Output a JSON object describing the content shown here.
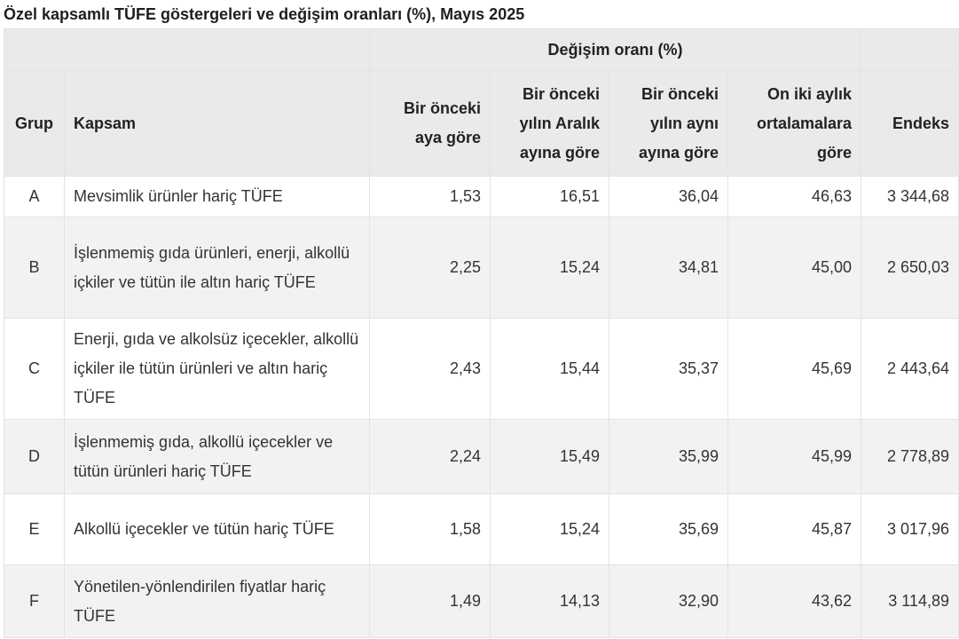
{
  "title": "Özel kapsamlı TÜFE göstergeleri ve değişim oranları (%), Mayıs 2025",
  "header": {
    "change_group": "Değişim oranı (%)",
    "group": "Grup",
    "scope": "Kapsam",
    "monthly": "Bir önceki aya göre",
    "dec": "Bir önceki yılın Aralık ayına göre",
    "yoy": "Bir önceki yılın aynı ayına göre",
    "avg12": "On iki aylık ortalamalara göre",
    "index": "Endeks"
  },
  "rows": [
    {
      "group": "A",
      "scope": "Mevsimlik ürünler hariç TÜFE",
      "monthly": "1,53",
      "dec": "16,51",
      "yoy": "36,04",
      "avg12": "46,63",
      "index": "3 344,68"
    },
    {
      "group": "B",
      "scope": "İşlenmemiş gıda ürünleri, enerji, alkollü içkiler ve tütün ile altın hariç TÜFE",
      "monthly": "2,25",
      "dec": "15,24",
      "yoy": "34,81",
      "avg12": "45,00",
      "index": "2 650,03"
    },
    {
      "group": "C",
      "scope": "Enerji, gıda ve alkolsüz içecekler, alkollü içkiler ile tütün ürünleri ve altın hariç TÜFE",
      "monthly": "2,43",
      "dec": "15,44",
      "yoy": "35,37",
      "avg12": "45,69",
      "index": "2 443,64"
    },
    {
      "group": "D",
      "scope": "İşlenmemiş gıda, alkollü içecekler ve tütün ürünleri hariç TÜFE",
      "monthly": "2,24",
      "dec": "15,49",
      "yoy": "35,99",
      "avg12": "45,99",
      "index": "2 778,89"
    },
    {
      "group": "E",
      "scope": "Alkollü içecekler ve tütün hariç TÜFE",
      "monthly": "1,58",
      "dec": "15,24",
      "yoy": "35,69",
      "avg12": "45,87",
      "index": "3 017,96"
    },
    {
      "group": "F",
      "scope": "Yönetilen-yönlendirilen fiyatlar hariç TÜFE",
      "monthly": "1,49",
      "dec": "14,13",
      "yoy": "32,90",
      "avg12": "43,62",
      "index": "3 114,89"
    }
  ]
}
